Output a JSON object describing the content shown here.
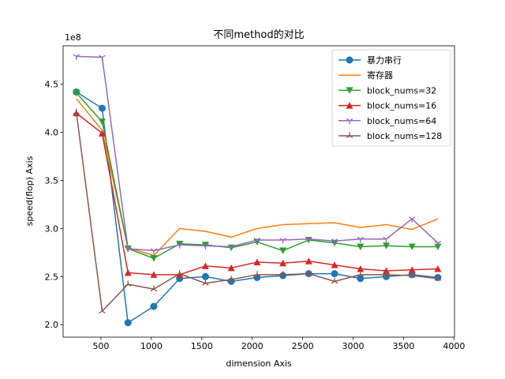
{
  "chart_data": {
    "type": "line",
    "title": "不同method的对比",
    "xlabel": "dimension Axis",
    "ylabel": "speed(flop) Axis",
    "y_offset_label": "1e8",
    "y_scale": 100000000,
    "xlim": [
      125,
      4005
    ],
    "ylim": [
      1.87,
      4.9
    ],
    "x_ticks": [
      500,
      1000,
      1500,
      2000,
      2500,
      3000,
      3500,
      4000
    ],
    "x_tick_labels": [
      "500",
      "1000",
      "1500",
      "2000",
      "2500",
      "3000",
      "3500",
      "4000"
    ],
    "y_ticks": [
      2.0,
      2.5,
      3.0,
      3.5,
      4.0,
      4.5
    ],
    "y_tick_labels": [
      "2.0",
      "2.5",
      "3.0",
      "3.5",
      "4.0",
      "4.5"
    ],
    "legend_position": "top-right",
    "x": [
      256,
      512,
      768,
      1024,
      1280,
      1536,
      1792,
      2048,
      2304,
      2560,
      2816,
      3072,
      3328,
      3584,
      3840
    ],
    "series": [
      {
        "name": "暴力串行",
        "color": "#1f77b4",
        "marker": "circle",
        "values": [
          4.42,
          4.25,
          2.02,
          2.19,
          2.48,
          2.5,
          2.45,
          2.49,
          2.51,
          2.53,
          2.53,
          2.48,
          2.5,
          2.52,
          2.49
        ]
      },
      {
        "name": "寄存器",
        "color": "#ff7f0e",
        "marker": "none",
        "values": [
          4.35,
          4.02,
          2.8,
          2.72,
          3.0,
          2.97,
          2.91,
          3.0,
          3.04,
          3.05,
          3.06,
          3.01,
          3.04,
          2.99,
          3.1
        ]
      },
      {
        "name": "block_nums=32",
        "color": "#2ca02c",
        "marker": "triangle-down",
        "values": [
          4.41,
          4.11,
          2.79,
          2.69,
          2.84,
          2.83,
          2.8,
          2.86,
          2.77,
          2.88,
          2.85,
          2.81,
          2.82,
          2.81,
          2.81
        ]
      },
      {
        "name": "block_nums=16",
        "color": "#d62728",
        "marker": "triangle-up",
        "values": [
          4.2,
          3.99,
          2.54,
          2.52,
          2.52,
          2.61,
          2.59,
          2.65,
          2.64,
          2.66,
          2.62,
          2.58,
          2.56,
          2.57,
          2.58
        ]
      },
      {
        "name": "block_nums=64",
        "color": "#9467bd",
        "marker": "tri-down",
        "values": [
          4.79,
          4.78,
          2.79,
          2.77,
          2.83,
          2.82,
          2.81,
          2.88,
          2.88,
          2.89,
          2.87,
          2.89,
          2.89,
          3.1,
          2.85
        ]
      },
      {
        "name": "block_nums=128",
        "color": "#8c564b",
        "marker": "tri-up",
        "values": [
          4.21,
          2.14,
          2.42,
          2.37,
          2.53,
          2.43,
          2.47,
          2.52,
          2.52,
          2.53,
          2.45,
          2.52,
          2.52,
          2.51,
          2.48
        ]
      }
    ]
  }
}
